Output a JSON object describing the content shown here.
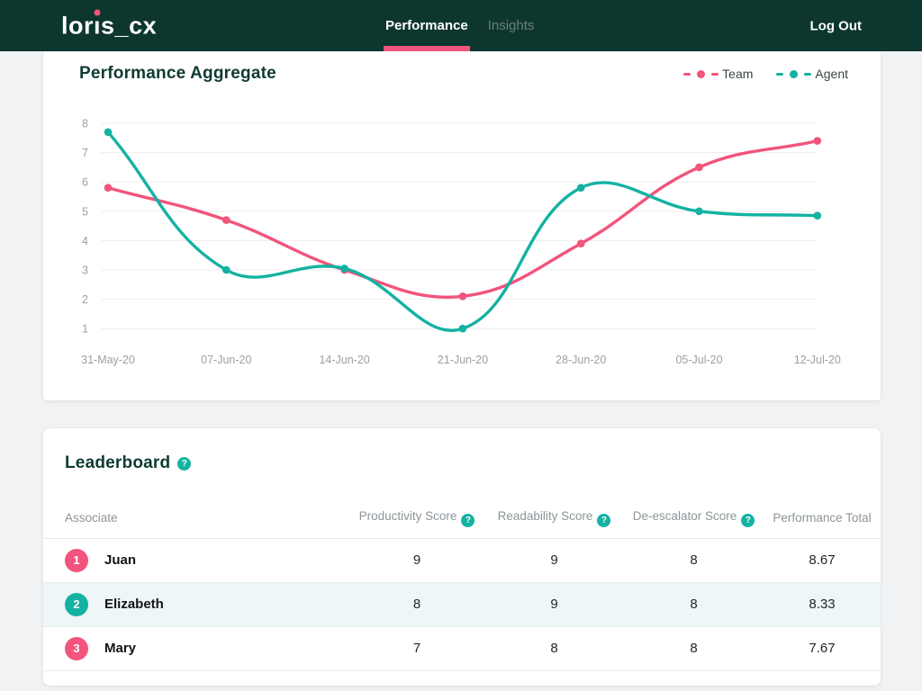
{
  "header": {
    "logo_text": "loris_cx",
    "nav": [
      {
        "label": "Performance",
        "active": true
      },
      {
        "label": "Insights",
        "active": false
      }
    ],
    "logout_label": "Log Out"
  },
  "chart_card": {
    "title": "Performance Aggregate",
    "legend": [
      {
        "label": "Team",
        "color": "#f2547b"
      },
      {
        "label": "Agent",
        "color": "#14b2a2"
      }
    ]
  },
  "chart_data": {
    "type": "line",
    "x": [
      "31-May-20",
      "07-Jun-20",
      "14-Jun-20",
      "21-Jun-20",
      "28-Jun-20",
      "05-Jul-20",
      "12-Jul-20"
    ],
    "series": [
      {
        "name": "Team",
        "color": "#f2547b",
        "values": [
          5.8,
          4.7,
          3.0,
          2.1,
          3.9,
          6.5,
          7.4
        ]
      },
      {
        "name": "Agent",
        "color": "#14b2a2",
        "values": [
          7.7,
          3.0,
          3.05,
          1.0,
          5.8,
          5.0,
          4.85
        ]
      }
    ],
    "ylim": [
      1,
      8
    ],
    "yticks": [
      1,
      2,
      3,
      4,
      5,
      6,
      7,
      8
    ],
    "grid": "horizontal",
    "legend_position": "top-right",
    "curve": "smooth-tension-0.4",
    "point_markers": true
  },
  "glyphs": {
    "help": "?"
  },
  "leaderboard": {
    "title": "Leaderboard",
    "columns": [
      {
        "label": "Associate",
        "help": false
      },
      {
        "label": "Productivity Score",
        "help": true
      },
      {
        "label": "Readability Score",
        "help": true
      },
      {
        "label": "De-escalator Score",
        "help": true
      },
      {
        "label": "Performance Total",
        "help": false
      }
    ],
    "rows": [
      {
        "rank": "1",
        "badge_color": "pink",
        "name": "Juan",
        "productivity": "9",
        "readability": "9",
        "deescalator": "8",
        "total": "8.67"
      },
      {
        "rank": "2",
        "badge_color": "teal",
        "name": "Elizabeth",
        "productivity": "8",
        "readability": "9",
        "deescalator": "8",
        "total": "8.33"
      },
      {
        "rank": "3",
        "badge_color": "pink",
        "name": "Mary",
        "productivity": "7",
        "readability": "8",
        "deescalator": "8",
        "total": "7.67"
      }
    ]
  },
  "colors": {
    "header_bg": "#0d362e",
    "brand_pink": "#f2547b",
    "brand_teal": "#14b2a2",
    "page_bg": "#f1f2f4",
    "title_green": "#0e3b33",
    "row_tint": "#eef6f7",
    "grid_line": "#eeeeee",
    "tick_text": "#9aa0a3"
  }
}
